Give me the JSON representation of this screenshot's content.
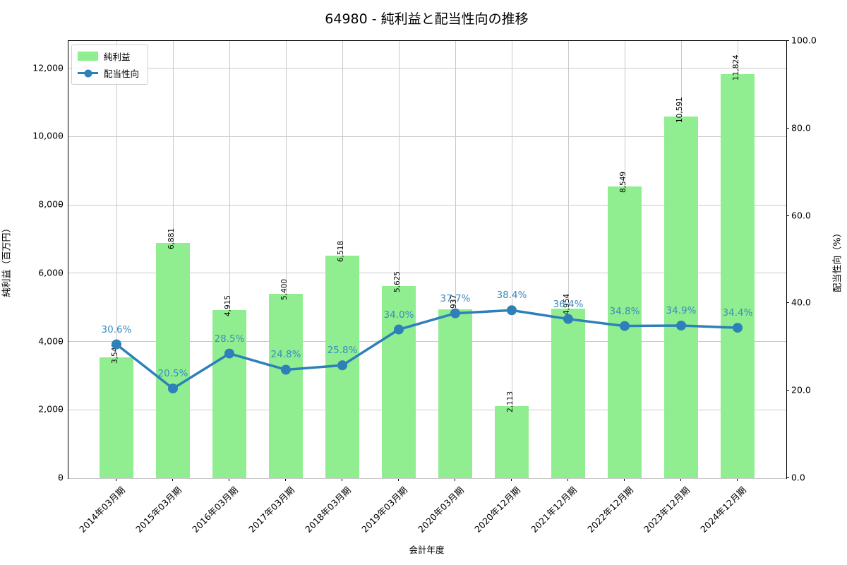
{
  "title": "64980 - 純利益と配当性向の推移",
  "legend": {
    "bar_label": "純利益",
    "line_label": "配当性向"
  },
  "axes": {
    "x_label": "会計年度",
    "y_left_label": "純利益（百万円）",
    "y_right_label": "配当性向（%）"
  },
  "colors": {
    "bar": "#90ee90",
    "line": "#2e80b9",
    "pct_label": "#3a8cc1",
    "bar_value_label": "#000000",
    "grid": "#c9c9c9",
    "spine": "#000000"
  },
  "chart_data": {
    "type": "bar",
    "categories": [
      "2014年03月期",
      "2015年03月期",
      "2016年03月期",
      "2017年03月期",
      "2018年03月期",
      "2019年03月期",
      "2020年03月期",
      "2020年12月期",
      "2021年12月期",
      "2022年12月期",
      "2023年12月期",
      "2024年12月期"
    ],
    "series": [
      {
        "name": "純利益",
        "type": "bar",
        "axis": "left",
        "values": [
          3545,
          6881,
          4915,
          5400,
          6518,
          5625,
          4937,
          2113,
          4954,
          8549,
          10591,
          11824
        ],
        "value_labels": [
          "3,545",
          "6,881",
          "4,915",
          "5,400",
          "6,518",
          "5,625",
          "4,937",
          "2,113",
          "4,954",
          "8,549",
          "10,591",
          "11,824"
        ]
      },
      {
        "name": "配当性向",
        "type": "line",
        "axis": "right",
        "values": [
          30.6,
          20.5,
          28.5,
          24.8,
          25.8,
          34.0,
          37.7,
          38.4,
          36.4,
          34.8,
          34.9,
          34.4
        ],
        "value_labels": [
          "30.6%",
          "20.5%",
          "28.5%",
          "24.8%",
          "25.8%",
          "34.0%",
          "37.7%",
          "38.4%",
          "36.4%",
          "34.8%",
          "34.9%",
          "34.4%"
        ]
      }
    ],
    "y_left": {
      "ticks": [
        0,
        2000,
        4000,
        6000,
        8000,
        10000,
        12000
      ],
      "tick_labels": [
        "0",
        "2,000",
        "4,000",
        "6,000",
        "8,000",
        "10,000",
        "12,000"
      ],
      "lim": [
        0,
        12800
      ]
    },
    "y_right": {
      "ticks": [
        0,
        20,
        40,
        60,
        80,
        100
      ],
      "tick_labels": [
        "0.0",
        "20.0",
        "40.0",
        "60.0",
        "80.0",
        "100.0"
      ],
      "lim": [
        0,
        100
      ]
    },
    "xlabel": "会計年度",
    "ylabel_left": "純利益（百万円）",
    "ylabel_right": "配当性向（%）",
    "grid": true,
    "legend_position": "upper left"
  }
}
